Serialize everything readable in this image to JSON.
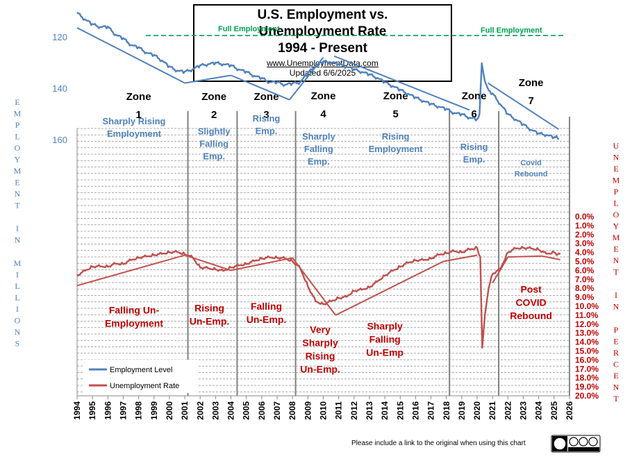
{
  "header": {
    "title_line1": "U.S. Employment vs.",
    "title_line2": "Unemployment Rate",
    "title_line3": "1994 - Present",
    "url": "www.UnemploymentData.com",
    "updated": "Updated  6/6/2025"
  },
  "footer": {
    "note": "Please include a link to the original when using this chart"
  },
  "colors": {
    "employment": "#4f81bd",
    "unemployment": "#c0504d",
    "left_axis_label": "#4f81bd",
    "right_axis_label": "#c00000",
    "full_employment": "#00a050"
  },
  "chart_data": {
    "type": "line",
    "y_left_label": "EMPLOYMENT IN MILLIONS",
    "y_right_label": "UNEMPLOYMENT IN PERCENT",
    "y_left_ticks": [
      120,
      140,
      160
    ],
    "y_left_range": [
      100,
      165
    ],
    "y_right_range_inverted": [
      20.0,
      0.0
    ],
    "y_right_ticks": [
      "0.0%",
      "1.0%",
      "2.0%",
      "3.0%",
      "4.0%",
      "5.0%",
      "6.0%",
      "7.0%",
      "8.0%",
      "9.0%",
      "10.0%",
      "11.0%",
      "12.0%",
      "13.0%",
      "14.0%",
      "15.0%",
      "16.0%",
      "17.0%",
      "18.0%",
      "19.0%",
      "20.0%"
    ],
    "x_ticks": [
      "1994",
      "1995",
      "1996",
      "1997",
      "1998",
      "1999",
      "2000",
      "2001",
      "2002",
      "2003",
      "2004",
      "2005",
      "2006",
      "2007",
      "2008",
      "2009",
      "2010",
      "2011",
      "2012",
      "2013",
      "2014",
      "2015",
      "2016",
      "2017",
      "2018",
      "2019",
      "2020",
      "2021",
      "2022",
      "2023",
      "2024",
      "2025",
      "2026"
    ],
    "series": [
      {
        "name": "Employment Level",
        "color": "#4f81bd",
        "points": [
          [
            1994.0,
            110.5
          ],
          [
            1994.5,
            113
          ],
          [
            1995.0,
            115
          ],
          [
            1995.5,
            116
          ],
          [
            1996.0,
            116
          ],
          [
            1996.5,
            119
          ],
          [
            1997.0,
            120.5
          ],
          [
            1997.5,
            123
          ],
          [
            1998.0,
            124
          ],
          [
            1998.5,
            126
          ],
          [
            1999.0,
            127
          ],
          [
            1999.5,
            129
          ],
          [
            2000.0,
            131.5
          ],
          [
            2000.5,
            133
          ],
          [
            2001.0,
            133.5
          ],
          [
            2001.5,
            132.5
          ],
          [
            2002.0,
            131
          ],
          [
            2002.5,
            130.5
          ],
          [
            2003.0,
            130
          ],
          [
            2003.5,
            130.5
          ],
          [
            2004.0,
            131
          ],
          [
            2004.5,
            132.5
          ],
          [
            2005.0,
            133.5
          ],
          [
            2005.5,
            135
          ],
          [
            2006.0,
            136
          ],
          [
            2006.5,
            137.5
          ],
          [
            2007.0,
            137.5
          ],
          [
            2007.5,
            138.5
          ],
          [
            2008.0,
            138
          ],
          [
            2008.5,
            137.5
          ],
          [
            2009.0,
            134
          ],
          [
            2009.5,
            131
          ],
          [
            2010.0,
            129.5
          ],
          [
            2010.5,
            129.8
          ],
          [
            2011.0,
            130.5
          ],
          [
            2011.5,
            131.5
          ],
          [
            2012.0,
            132.5
          ],
          [
            2012.5,
            133.5
          ],
          [
            2013.0,
            134.5
          ],
          [
            2013.5,
            135.8
          ],
          [
            2014.0,
            137.5
          ],
          [
            2014.5,
            139
          ],
          [
            2015.0,
            140.5
          ],
          [
            2015.5,
            142
          ],
          [
            2016.0,
            143.5
          ],
          [
            2016.5,
            144.8
          ],
          [
            2017.0,
            146
          ],
          [
            2017.5,
            147
          ],
          [
            2018.0,
            148
          ],
          [
            2018.5,
            149.5
          ],
          [
            2019.0,
            150
          ],
          [
            2019.5,
            151.3
          ],
          [
            2020.0,
            152
          ],
          [
            2020.15,
            151
          ],
          [
            2020.3,
            130
          ],
          [
            2020.5,
            137
          ],
          [
            2020.75,
            141
          ],
          [
            2021.0,
            142
          ],
          [
            2021.5,
            146
          ],
          [
            2022.0,
            150
          ],
          [
            2022.5,
            152
          ],
          [
            2023.0,
            154
          ],
          [
            2023.5,
            156
          ],
          [
            2024.0,
            157.5
          ],
          [
            2024.5,
            158
          ],
          [
            2025.0,
            159
          ],
          [
            2025.3,
            160
          ]
        ]
      },
      {
        "name": "Unemployment Rate",
        "color": "#c0504d",
        "points": [
          [
            1994.0,
            6.6
          ],
          [
            1994.5,
            6.1
          ],
          [
            1995.0,
            5.6
          ],
          [
            1995.5,
            5.6
          ],
          [
            1996.0,
            5.6
          ],
          [
            1996.5,
            5.3
          ],
          [
            1997.0,
            5.3
          ],
          [
            1997.5,
            4.9
          ],
          [
            1998.0,
            4.6
          ],
          [
            1998.5,
            4.5
          ],
          [
            1999.0,
            4.3
          ],
          [
            1999.5,
            4.2
          ],
          [
            2000.0,
            4.0
          ],
          [
            2000.5,
            4.0
          ],
          [
            2001.0,
            4.2
          ],
          [
            2001.5,
            4.6
          ],
          [
            2002.0,
            5.7
          ],
          [
            2002.5,
            5.8
          ],
          [
            2003.0,
            5.9
          ],
          [
            2003.5,
            6.1
          ],
          [
            2004.0,
            5.7
          ],
          [
            2004.5,
            5.5
          ],
          [
            2005.0,
            5.3
          ],
          [
            2005.5,
            5.0
          ],
          [
            2006.0,
            4.7
          ],
          [
            2006.5,
            4.6
          ],
          [
            2007.0,
            4.6
          ],
          [
            2007.5,
            4.7
          ],
          [
            2008.0,
            5.0
          ],
          [
            2008.5,
            5.8
          ],
          [
            2009.0,
            7.8
          ],
          [
            2009.5,
            9.5
          ],
          [
            2010.0,
            9.8
          ],
          [
            2010.5,
            9.5
          ],
          [
            2011.0,
            9.1
          ],
          [
            2011.5,
            9.0
          ],
          [
            2012.0,
            8.3
          ],
          [
            2012.5,
            8.2
          ],
          [
            2013.0,
            7.9
          ],
          [
            2013.5,
            7.3
          ],
          [
            2014.0,
            6.6
          ],
          [
            2014.5,
            6.1
          ],
          [
            2015.0,
            5.6
          ],
          [
            2015.5,
            5.2
          ],
          [
            2016.0,
            4.9
          ],
          [
            2016.5,
            4.9
          ],
          [
            2017.0,
            4.7
          ],
          [
            2017.5,
            4.3
          ],
          [
            2018.0,
            4.1
          ],
          [
            2018.5,
            3.9
          ],
          [
            2019.0,
            4.0
          ],
          [
            2019.5,
            3.7
          ],
          [
            2020.0,
            3.5
          ],
          [
            2020.2,
            4.4
          ],
          [
            2020.33,
            14.7
          ],
          [
            2020.5,
            11.1
          ],
          [
            2020.75,
            7.9
          ],
          [
            2021.0,
            6.4
          ],
          [
            2021.5,
            5.9
          ],
          [
            2022.0,
            4.0
          ],
          [
            2022.5,
            3.6
          ],
          [
            2023.0,
            3.5
          ],
          [
            2023.5,
            3.6
          ],
          [
            2024.0,
            3.7
          ],
          [
            2024.5,
            4.2
          ],
          [
            2025.0,
            4.0
          ],
          [
            2025.4,
            4.2
          ]
        ]
      }
    ],
    "full_employment_label": "Full   Employment",
    "full_employment_left": 119.5,
    "trend_lines": {
      "employment": [
        [
          [
            1994.0,
            116.5
          ],
          [
            2001.0,
            138
          ]
        ],
        [
          [
            2001.0,
            138
          ],
          [
            2004.0,
            135
          ]
        ],
        [
          [
            2004.0,
            135
          ],
          [
            2007.8,
            144.5
          ]
        ],
        [
          [
            2007.8,
            144.5
          ],
          [
            2010.0,
            128
          ]
        ],
        [
          [
            2010.7,
            127.5
          ],
          [
            2019.5,
            148.5
          ]
        ],
        [
          [
            2020.7,
            138
          ],
          [
            2025.3,
            156
          ]
        ]
      ],
      "unemployment": [
        [
          [
            1994.0,
            7.7
          ],
          [
            2001.0,
            4.3
          ]
        ],
        [
          [
            2001.0,
            4.3
          ],
          [
            2004.0,
            6.0
          ]
        ],
        [
          [
            2004.0,
            6.0
          ],
          [
            2008.0,
            4.6
          ]
        ],
        [
          [
            2008.0,
            4.6
          ],
          [
            2010.8,
            11.0
          ]
        ],
        [
          [
            2010.8,
            11.0
          ],
          [
            2017.8,
            5.0
          ]
        ],
        [
          [
            2017.8,
            5.0
          ],
          [
            2020.0,
            4.3
          ]
        ],
        [
          [
            2021.0,
            7.4
          ],
          [
            2022.0,
            4.5
          ]
        ],
        [
          [
            2022.0,
            4.5
          ],
          [
            2024.2,
            4.4
          ]
        ],
        [
          [
            2024.2,
            4.4
          ],
          [
            2025.4,
            4.8
          ]
        ]
      ]
    },
    "zone_boundaries": [
      2001.2,
      2004.4,
      2008.2,
      2018.2,
      2021.4
    ],
    "zones": [
      {
        "label": "Zone",
        "num": "1",
        "x": 1998.0
      },
      {
        "label": "Zone",
        "num": "2",
        "x": 2002.9
      },
      {
        "label": "Zone",
        "num": "3",
        "x": 2006.3
      },
      {
        "label": "Zone",
        "num": "4",
        "x": 2010.0
      },
      {
        "label": "Zone",
        "num": "5",
        "x": 2014.7
      },
      {
        "label": "Zone",
        "num": "6",
        "x": 2019.8
      },
      {
        "label": "Zone",
        "num": "7",
        "x": 2023.5
      }
    ],
    "employment_notes": [
      {
        "lines": [
          "Sharply Rising",
          "Employment"
        ],
        "x": 1997.7,
        "y": 154
      },
      {
        "lines": [
          "Slightly",
          "Falling",
          "Emp."
        ],
        "x": 2002.9,
        "y": 158
      },
      {
        "lines": [
          "Rising",
          "Emp."
        ],
        "x": 2006.3,
        "y": 153
      },
      {
        "lines": [
          "Sharply",
          "Falling",
          "Emp."
        ],
        "x": 2009.7,
        "y": 160
      },
      {
        "lines": [
          "Rising",
          "Employment"
        ],
        "x": 2014.7,
        "y": 160
      },
      {
        "lines": [
          "Rising",
          "Emp."
        ],
        "x": 2019.8,
        "y": 164
      },
      {
        "lines": [
          "Covid",
          "Rebound"
        ],
        "x": 2023.5,
        "y": 170
      }
    ],
    "unemployment_notes": [
      {
        "lines": [
          "Falling Un-",
          "Employment"
        ],
        "x": 1997.7,
        "y": 10.8
      },
      {
        "lines": [
          "Rising",
          "Un-Emp."
        ],
        "x": 2002.6,
        "y": 10.6
      },
      {
        "lines": [
          "Falling",
          "Un-Emp."
        ],
        "x": 2006.3,
        "y": 10.4
      },
      {
        "lines": [
          "Very",
          "Sharply",
          "Rising",
          "Un-Emp."
        ],
        "x": 2009.8,
        "y": 13.0
      },
      {
        "lines": [
          "Sharply",
          "Falling",
          "Un-Emp"
        ],
        "x": 2014.0,
        "y": 12.6
      },
      {
        "lines": [
          "Post",
          "COVID",
          "Rebound"
        ],
        "x": 2023.5,
        "y": 8.5
      }
    ],
    "legend": {
      "placement": "bottom-left",
      "items": [
        "Employment Level",
        "Unemployment Rate"
      ]
    }
  }
}
